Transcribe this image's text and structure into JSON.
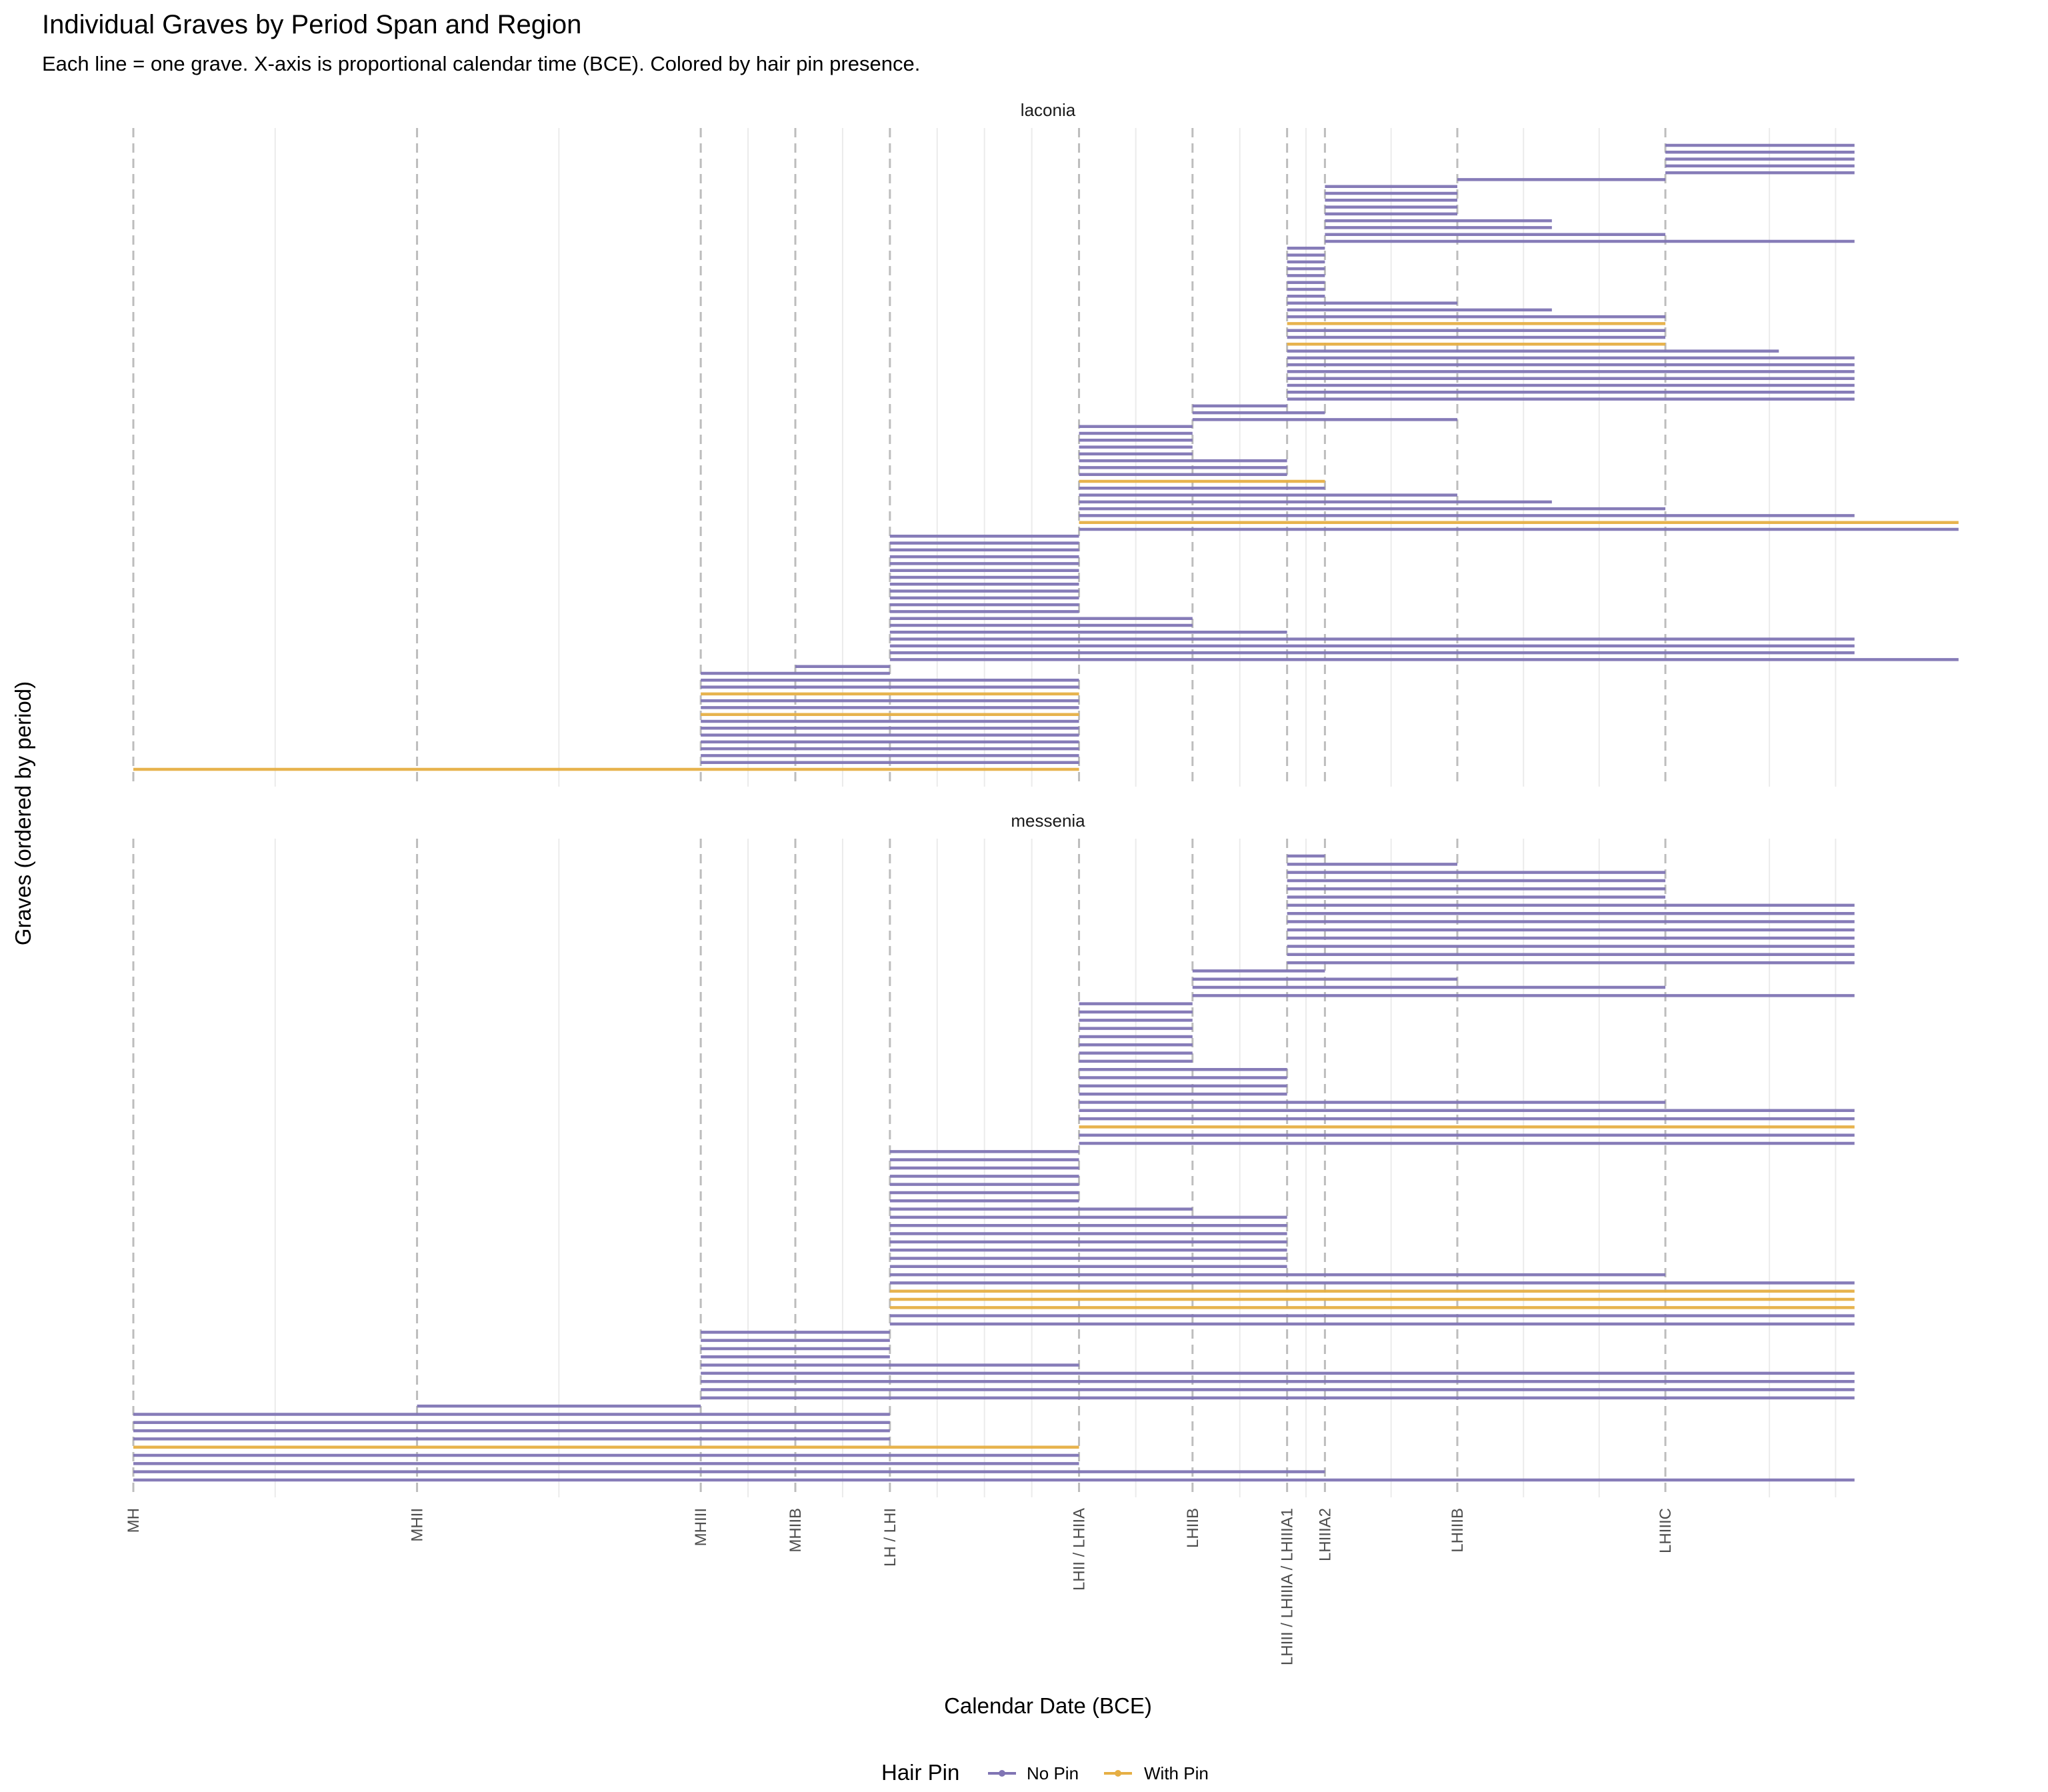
{
  "chart_data": {
    "type": "line",
    "title": "Individual Graves by Period Span and Region",
    "subtitle": "Each line = one grave. X-axis is proportional calendar time (BCE). Colored by hair pin presence.",
    "xlabel": "Calendar Date (BCE)",
    "ylabel": "Graves (ordered by period)",
    "xlim": [
      2000,
      1030
    ],
    "grid": true,
    "legend": {
      "title": "Hair Pin",
      "position": "bottom",
      "items": [
        {
          "label": "No Pin",
          "color": "#8075B4"
        },
        {
          "label": "With Pin",
          "color": "#E6AF44"
        }
      ]
    },
    "period_boundaries": [
      {
        "label": "MH",
        "x": 2000
      },
      {
        "label": "MHII",
        "x": 1850
      },
      {
        "label": "MHIII",
        "x": 1700
      },
      {
        "label": "MHIIB",
        "x": 1650
      },
      {
        "label": "LH / LHI",
        "x": 1600
      },
      {
        "label": "LHII / LHIIA",
        "x": 1500
      },
      {
        "label": "LHIIB",
        "x": 1440
      },
      {
        "label": "LHIII / LHIIIA / LHIIIA1",
        "x": 1390
      },
      {
        "label": "LHIIIA2",
        "x": 1370
      },
      {
        "label": "LHIIIB",
        "x": 1300
      },
      {
        "label": "LHIIIC",
        "x": 1190
      }
    ],
    "minor_grid_x": [
      1925,
      1775,
      1675,
      1625,
      1575,
      1550,
      1525,
      1470,
      1415,
      1380,
      1335,
      1265,
      1225,
      1135,
      1100
    ],
    "panels": [
      {
        "name": "laconia",
        "graves": [
          {
            "start": 2000,
            "end": 1500,
            "pin": true
          },
          {
            "start": 1700,
            "end": 1500,
            "pin": false
          },
          {
            "start": 1700,
            "end": 1500,
            "pin": false
          },
          {
            "start": 1700,
            "end": 1500,
            "pin": false
          },
          {
            "start": 1700,
            "end": 1500,
            "pin": false
          },
          {
            "start": 1700,
            "end": 1500,
            "pin": false
          },
          {
            "start": 1700,
            "end": 1500,
            "pin": false
          },
          {
            "start": 1700,
            "end": 1500,
            "pin": false
          },
          {
            "start": 1700,
            "end": 1500,
            "pin": true
          },
          {
            "start": 1700,
            "end": 1500,
            "pin": false
          },
          {
            "start": 1700,
            "end": 1500,
            "pin": false
          },
          {
            "start": 1700,
            "end": 1500,
            "pin": true
          },
          {
            "start": 1700,
            "end": 1500,
            "pin": false
          },
          {
            "start": 1700,
            "end": 1500,
            "pin": false
          },
          {
            "start": 1700,
            "end": 1600,
            "pin": false
          },
          {
            "start": 1650,
            "end": 1600,
            "pin": false
          },
          {
            "start": 1600,
            "end": 1035,
            "pin": false
          },
          {
            "start": 1600,
            "end": 1090,
            "pin": false
          },
          {
            "start": 1600,
            "end": 1090,
            "pin": false
          },
          {
            "start": 1600,
            "end": 1090,
            "pin": false
          },
          {
            "start": 1600,
            "end": 1390,
            "pin": false
          },
          {
            "start": 1600,
            "end": 1440,
            "pin": false
          },
          {
            "start": 1600,
            "end": 1440,
            "pin": false
          },
          {
            "start": 1600,
            "end": 1500,
            "pin": false
          },
          {
            "start": 1600,
            "end": 1500,
            "pin": false
          },
          {
            "start": 1600,
            "end": 1500,
            "pin": false
          },
          {
            "start": 1600,
            "end": 1500,
            "pin": false
          },
          {
            "start": 1600,
            "end": 1500,
            "pin": false
          },
          {
            "start": 1600,
            "end": 1500,
            "pin": false
          },
          {
            "start": 1600,
            "end": 1500,
            "pin": false
          },
          {
            "start": 1600,
            "end": 1500,
            "pin": false
          },
          {
            "start": 1600,
            "end": 1500,
            "pin": false
          },
          {
            "start": 1600,
            "end": 1500,
            "pin": false
          },
          {
            "start": 1600,
            "end": 1500,
            "pin": false
          },
          {
            "start": 1600,
            "end": 1500,
            "pin": false
          },
          {
            "start": 1500,
            "end": 1035,
            "pin": false
          },
          {
            "start": 1500,
            "end": 1035,
            "pin": true
          },
          {
            "start": 1500,
            "end": 1090,
            "pin": false
          },
          {
            "start": 1500,
            "end": 1190,
            "pin": false
          },
          {
            "start": 1500,
            "end": 1250,
            "pin": false
          },
          {
            "start": 1500,
            "end": 1300,
            "pin": false
          },
          {
            "start": 1500,
            "end": 1370,
            "pin": false
          },
          {
            "start": 1500,
            "end": 1370,
            "pin": true
          },
          {
            "start": 1500,
            "end": 1390,
            "pin": false
          },
          {
            "start": 1500,
            "end": 1390,
            "pin": false
          },
          {
            "start": 1500,
            "end": 1390,
            "pin": false
          },
          {
            "start": 1500,
            "end": 1440,
            "pin": false
          },
          {
            "start": 1500,
            "end": 1440,
            "pin": false
          },
          {
            "start": 1500,
            "end": 1440,
            "pin": false
          },
          {
            "start": 1500,
            "end": 1440,
            "pin": false
          },
          {
            "start": 1500,
            "end": 1440,
            "pin": false
          },
          {
            "start": 1440,
            "end": 1300,
            "pin": false
          },
          {
            "start": 1440,
            "end": 1370,
            "pin": false
          },
          {
            "start": 1440,
            "end": 1390,
            "pin": false
          },
          {
            "start": 1390,
            "end": 1090,
            "pin": false
          },
          {
            "start": 1390,
            "end": 1090,
            "pin": false
          },
          {
            "start": 1390,
            "end": 1090,
            "pin": false
          },
          {
            "start": 1390,
            "end": 1090,
            "pin": false
          },
          {
            "start": 1390,
            "end": 1090,
            "pin": false
          },
          {
            "start": 1390,
            "end": 1090,
            "pin": false
          },
          {
            "start": 1390,
            "end": 1090,
            "pin": false
          },
          {
            "start": 1390,
            "end": 1130,
            "pin": false
          },
          {
            "start": 1390,
            "end": 1190,
            "pin": true
          },
          {
            "start": 1390,
            "end": 1190,
            "pin": false
          },
          {
            "start": 1390,
            "end": 1190,
            "pin": false
          },
          {
            "start": 1390,
            "end": 1190,
            "pin": true
          },
          {
            "start": 1390,
            "end": 1190,
            "pin": false
          },
          {
            "start": 1390,
            "end": 1250,
            "pin": false
          },
          {
            "start": 1390,
            "end": 1300,
            "pin": false
          },
          {
            "start": 1390,
            "end": 1370,
            "pin": false
          },
          {
            "start": 1390,
            "end": 1370,
            "pin": false
          },
          {
            "start": 1390,
            "end": 1370,
            "pin": false
          },
          {
            "start": 1390,
            "end": 1370,
            "pin": false
          },
          {
            "start": 1390,
            "end": 1370,
            "pin": false
          },
          {
            "start": 1390,
            "end": 1370,
            "pin": false
          },
          {
            "start": 1390,
            "end": 1370,
            "pin": false
          },
          {
            "start": 1390,
            "end": 1370,
            "pin": false
          },
          {
            "start": 1370,
            "end": 1090,
            "pin": false
          },
          {
            "start": 1370,
            "end": 1190,
            "pin": false
          },
          {
            "start": 1370,
            "end": 1250,
            "pin": false
          },
          {
            "start": 1370,
            "end": 1250,
            "pin": false
          },
          {
            "start": 1370,
            "end": 1300,
            "pin": false
          },
          {
            "start": 1370,
            "end": 1300,
            "pin": false
          },
          {
            "start": 1370,
            "end": 1300,
            "pin": false
          },
          {
            "start": 1370,
            "end": 1300,
            "pin": false
          },
          {
            "start": 1370,
            "end": 1300,
            "pin": false
          },
          {
            "start": 1300,
            "end": 1190,
            "pin": false
          },
          {
            "start": 1190,
            "end": 1090,
            "pin": false
          },
          {
            "start": 1190,
            "end": 1090,
            "pin": false
          },
          {
            "start": 1190,
            "end": 1090,
            "pin": false
          },
          {
            "start": 1190,
            "end": 1090,
            "pin": false
          },
          {
            "start": 1190,
            "end": 1090,
            "pin": false
          }
        ]
      },
      {
        "name": "messenia",
        "graves": [
          {
            "start": 2000,
            "end": 1090,
            "pin": false
          },
          {
            "start": 2000,
            "end": 1370,
            "pin": false
          },
          {
            "start": 2000,
            "end": 1500,
            "pin": false
          },
          {
            "start": 2000,
            "end": 1500,
            "pin": false
          },
          {
            "start": 2000,
            "end": 1500,
            "pin": true
          },
          {
            "start": 2000,
            "end": 1600,
            "pin": false
          },
          {
            "start": 2000,
            "end": 1600,
            "pin": false
          },
          {
            "start": 2000,
            "end": 1600,
            "pin": false
          },
          {
            "start": 2000,
            "end": 1600,
            "pin": false
          },
          {
            "start": 1850,
            "end": 1700,
            "pin": false
          },
          {
            "start": 1700,
            "end": 1090,
            "pin": false
          },
          {
            "start": 1700,
            "end": 1090,
            "pin": false
          },
          {
            "start": 1700,
            "end": 1090,
            "pin": false
          },
          {
            "start": 1700,
            "end": 1090,
            "pin": false
          },
          {
            "start": 1700,
            "end": 1500,
            "pin": false
          },
          {
            "start": 1700,
            "end": 1600,
            "pin": false
          },
          {
            "start": 1700,
            "end": 1600,
            "pin": false
          },
          {
            "start": 1700,
            "end": 1600,
            "pin": false
          },
          {
            "start": 1700,
            "end": 1600,
            "pin": false
          },
          {
            "start": 1600,
            "end": 1090,
            "pin": false
          },
          {
            "start": 1600,
            "end": 1090,
            "pin": false
          },
          {
            "start": 1600,
            "end": 1090,
            "pin": true
          },
          {
            "start": 1600,
            "end": 1090,
            "pin": true
          },
          {
            "start": 1600,
            "end": 1090,
            "pin": true
          },
          {
            "start": 1600,
            "end": 1090,
            "pin": false
          },
          {
            "start": 1600,
            "end": 1190,
            "pin": false
          },
          {
            "start": 1600,
            "end": 1390,
            "pin": false
          },
          {
            "start": 1600,
            "end": 1390,
            "pin": false
          },
          {
            "start": 1600,
            "end": 1390,
            "pin": false
          },
          {
            "start": 1600,
            "end": 1390,
            "pin": false
          },
          {
            "start": 1600,
            "end": 1390,
            "pin": false
          },
          {
            "start": 1600,
            "end": 1390,
            "pin": false
          },
          {
            "start": 1600,
            "end": 1390,
            "pin": false
          },
          {
            "start": 1600,
            "end": 1440,
            "pin": false
          },
          {
            "start": 1600,
            "end": 1500,
            "pin": false
          },
          {
            "start": 1600,
            "end": 1500,
            "pin": false
          },
          {
            "start": 1600,
            "end": 1500,
            "pin": false
          },
          {
            "start": 1600,
            "end": 1500,
            "pin": false
          },
          {
            "start": 1600,
            "end": 1500,
            "pin": false
          },
          {
            "start": 1600,
            "end": 1500,
            "pin": false
          },
          {
            "start": 1600,
            "end": 1500,
            "pin": false
          },
          {
            "start": 1500,
            "end": 1090,
            "pin": false
          },
          {
            "start": 1500,
            "end": 1090,
            "pin": false
          },
          {
            "start": 1500,
            "end": 1090,
            "pin": true
          },
          {
            "start": 1500,
            "end": 1090,
            "pin": false
          },
          {
            "start": 1500,
            "end": 1090,
            "pin": false
          },
          {
            "start": 1500,
            "end": 1190,
            "pin": false
          },
          {
            "start": 1500,
            "end": 1390,
            "pin": false
          },
          {
            "start": 1500,
            "end": 1390,
            "pin": false
          },
          {
            "start": 1500,
            "end": 1390,
            "pin": false
          },
          {
            "start": 1500,
            "end": 1390,
            "pin": false
          },
          {
            "start": 1500,
            "end": 1440,
            "pin": false
          },
          {
            "start": 1500,
            "end": 1440,
            "pin": false
          },
          {
            "start": 1500,
            "end": 1440,
            "pin": false
          },
          {
            "start": 1500,
            "end": 1440,
            "pin": false
          },
          {
            "start": 1500,
            "end": 1440,
            "pin": false
          },
          {
            "start": 1500,
            "end": 1440,
            "pin": false
          },
          {
            "start": 1500,
            "end": 1440,
            "pin": false
          },
          {
            "start": 1500,
            "end": 1440,
            "pin": false
          },
          {
            "start": 1440,
            "end": 1090,
            "pin": false
          },
          {
            "start": 1440,
            "end": 1190,
            "pin": false
          },
          {
            "start": 1440,
            "end": 1300,
            "pin": false
          },
          {
            "start": 1440,
            "end": 1370,
            "pin": false
          },
          {
            "start": 1390,
            "end": 1090,
            "pin": false
          },
          {
            "start": 1390,
            "end": 1090,
            "pin": false
          },
          {
            "start": 1390,
            "end": 1090,
            "pin": false
          },
          {
            "start": 1390,
            "end": 1090,
            "pin": false
          },
          {
            "start": 1390,
            "end": 1090,
            "pin": false
          },
          {
            "start": 1390,
            "end": 1090,
            "pin": false
          },
          {
            "start": 1390,
            "end": 1090,
            "pin": false
          },
          {
            "start": 1390,
            "end": 1090,
            "pin": false
          },
          {
            "start": 1390,
            "end": 1190,
            "pin": false
          },
          {
            "start": 1390,
            "end": 1190,
            "pin": false
          },
          {
            "start": 1390,
            "end": 1190,
            "pin": false
          },
          {
            "start": 1390,
            "end": 1190,
            "pin": false
          },
          {
            "start": 1390,
            "end": 1300,
            "pin": false
          },
          {
            "start": 1390,
            "end": 1370,
            "pin": false
          }
        ]
      }
    ]
  }
}
